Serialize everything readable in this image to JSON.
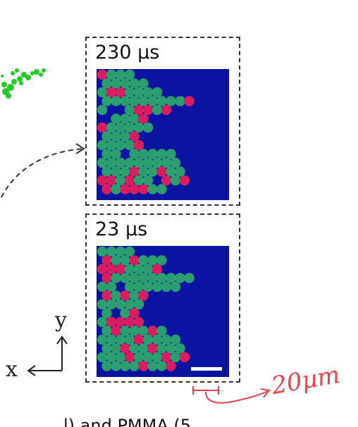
{
  "panels": [
    {
      "label": "230 µs"
    },
    {
      "label": "23 µs"
    }
  ],
  "axes": {
    "vertical": "y",
    "horizontal": "x"
  },
  "annotation": {
    "scale_text": "20µm"
  },
  "caption": {
    "text": "l) and PMMA (5"
  },
  "colors": {
    "background_blue": "#0a14a0",
    "particle_green": "#2faa6a",
    "particle_red": "#e8205a",
    "cluster_green": "#22cc22",
    "annotation_red": "#e8434f",
    "dashed_frame": "#333333"
  },
  "icons": [
    "scale-bar-icon",
    "dashed-arrow-icon",
    "axis-arrows-icon",
    "green-cluster-icon"
  ]
}
